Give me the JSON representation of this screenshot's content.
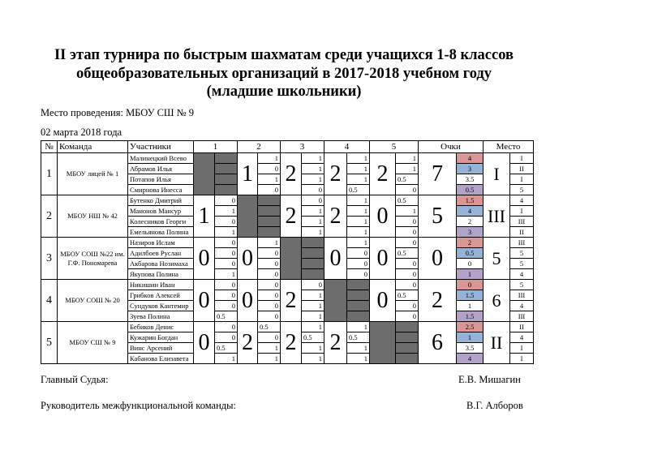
{
  "title": [
    "II этап турнира по быстрым шахматам среди учащихся 1-8 классов",
    "общеобразовательных организаций в 2017-2018 учебном году",
    "(младшие школьники)"
  ],
  "venue": "Место проведения: МБОУ СШ № 9",
  "date": "02 марта 2018 года",
  "headers": {
    "num": "№",
    "team": "Команда",
    "players": "Участники",
    "games": [
      "1",
      "2",
      "3",
      "4",
      "5"
    ],
    "points": "Очки",
    "place": "Место"
  },
  "colors": {
    "p1": "#d99694",
    "p2": "#95b3d7",
    "p3": "#ffffff",
    "p4": "#b3a2c7",
    "self": "#6d6d6d"
  },
  "teams": [
    {
      "num": "1",
      "name": "МБОУ лицей № 1",
      "players": [
        "Малинецкий Всево",
        "Абрамов Илья",
        "Потапов Илья",
        "Смирнова Инесса"
      ],
      "games": [
        null,
        {
          "total": "1",
          "scores": [
            "1",
            "0",
            "1",
            "0"
          ]
        },
        {
          "total": "2",
          "scores": [
            "1",
            "1",
            "1",
            "0"
          ]
        },
        {
          "total": "2",
          "scores": [
            "1",
            "1",
            "1",
            "0.5"
          ]
        },
        {
          "total": "2",
          "scores": [
            "1",
            "1",
            "0.5",
            "0"
          ]
        }
      ],
      "points": "7",
      "player_points": [
        "4",
        "3",
        "3.5",
        "0.5"
      ],
      "place": "I",
      "player_places": [
        "I",
        "II",
        "I",
        "5"
      ]
    },
    {
      "num": "2",
      "name": "МБОУ НШ № 42",
      "players": [
        "Бутенко Дмитрий",
        "Манонов Мансур",
        "Колесников Георги",
        "Емельянова Полина"
      ],
      "games": [
        {
          "total": "1",
          "scores": [
            "0",
            "1",
            "0",
            "1"
          ]
        },
        null,
        {
          "total": "2",
          "scores": [
            "0",
            "1",
            "1",
            "1"
          ]
        },
        {
          "total": "2",
          "scores": [
            "1",
            "1",
            "1",
            "1"
          ]
        },
        {
          "total": "0",
          "scores": [
            "0.5",
            "1",
            "0",
            "0"
          ]
        }
      ],
      "points": "5",
      "player_points": [
        "1.5",
        "4",
        "2",
        "3"
      ],
      "place": "III",
      "player_places": [
        "4",
        "I",
        "III",
        "II"
      ]
    },
    {
      "num": "3",
      "name": "МБОУ СОШ №22 им. Г.Ф. Пономарева",
      "players": [
        "Назиров Ислам",
        "Адилбоев Руслан",
        "Акбарова Нозимаха",
        "Якупова Полина"
      ],
      "games": [
        {
          "total": "0",
          "scores": [
            "0",
            "0",
            "0",
            "1"
          ]
        },
        {
          "total": "0",
          "scores": [
            "1",
            "0",
            "0",
            "0"
          ]
        },
        null,
        {
          "total": "0",
          "scores": [
            "1",
            "0",
            "0",
            "0"
          ]
        },
        {
          "total": "0",
          "scores": [
            "0",
            "0.5",
            "0",
            "0"
          ]
        }
      ],
      "points": "0",
      "player_points": [
        "2",
        "0.5",
        "0",
        "1"
      ],
      "place": "5",
      "player_places": [
        "III",
        "5",
        "5",
        "4"
      ]
    },
    {
      "num": "4",
      "name": "МБОУ СОШ № 20",
      "players": [
        "Никишин Иван",
        "Грибков Алексей",
        "Сундуков Кантемир",
        "Зуева Полина"
      ],
      "games": [
        {
          "total": "0",
          "scores": [
            "0",
            "0",
            "0",
            "0.5"
          ]
        },
        {
          "total": "0",
          "scores": [
            "0",
            "0",
            "0",
            "0"
          ]
        },
        {
          "total": "2",
          "scores": [
            "0",
            "1",
            "1",
            "1"
          ]
        },
        null,
        {
          "total": "0",
          "scores": [
            "0",
            "0.5",
            "0",
            "0"
          ]
        }
      ],
      "points": "2",
      "player_points": [
        "0",
        "1.5",
        "1",
        "1.5"
      ],
      "place": "6",
      "player_places": [
        "5",
        "III",
        "4",
        "III"
      ]
    },
    {
      "num": "5",
      "name": "МБОУ СШ № 9",
      "players": [
        "Бебиков Денис",
        "Кужарин Богдан",
        "Винс Арсений",
        "Кабанова Елизавета"
      ],
      "games": [
        {
          "total": "0",
          "scores": [
            "0",
            "0",
            "0.5",
            "1"
          ]
        },
        {
          "total": "2",
          "scores": [
            "0.5",
            "0",
            "1",
            "1"
          ]
        },
        {
          "total": "2",
          "scores": [
            "1",
            "0.5",
            "1",
            "1"
          ]
        },
        {
          "total": "2",
          "scores": [
            "1",
            "0.5",
            "1",
            "1"
          ]
        },
        null
      ],
      "points": "6",
      "player_points": [
        "2.5",
        "1",
        "3.5",
        "4"
      ],
      "place": "II",
      "player_places": [
        "II",
        "4",
        "I",
        "I"
      ]
    }
  ],
  "footer": {
    "judge_label": "Главный Судья:",
    "judge_name": "Е.В. Мишагин",
    "head_label": "Руководитель межфункциональной команды:",
    "head_name": "В.Г. Алборов"
  }
}
